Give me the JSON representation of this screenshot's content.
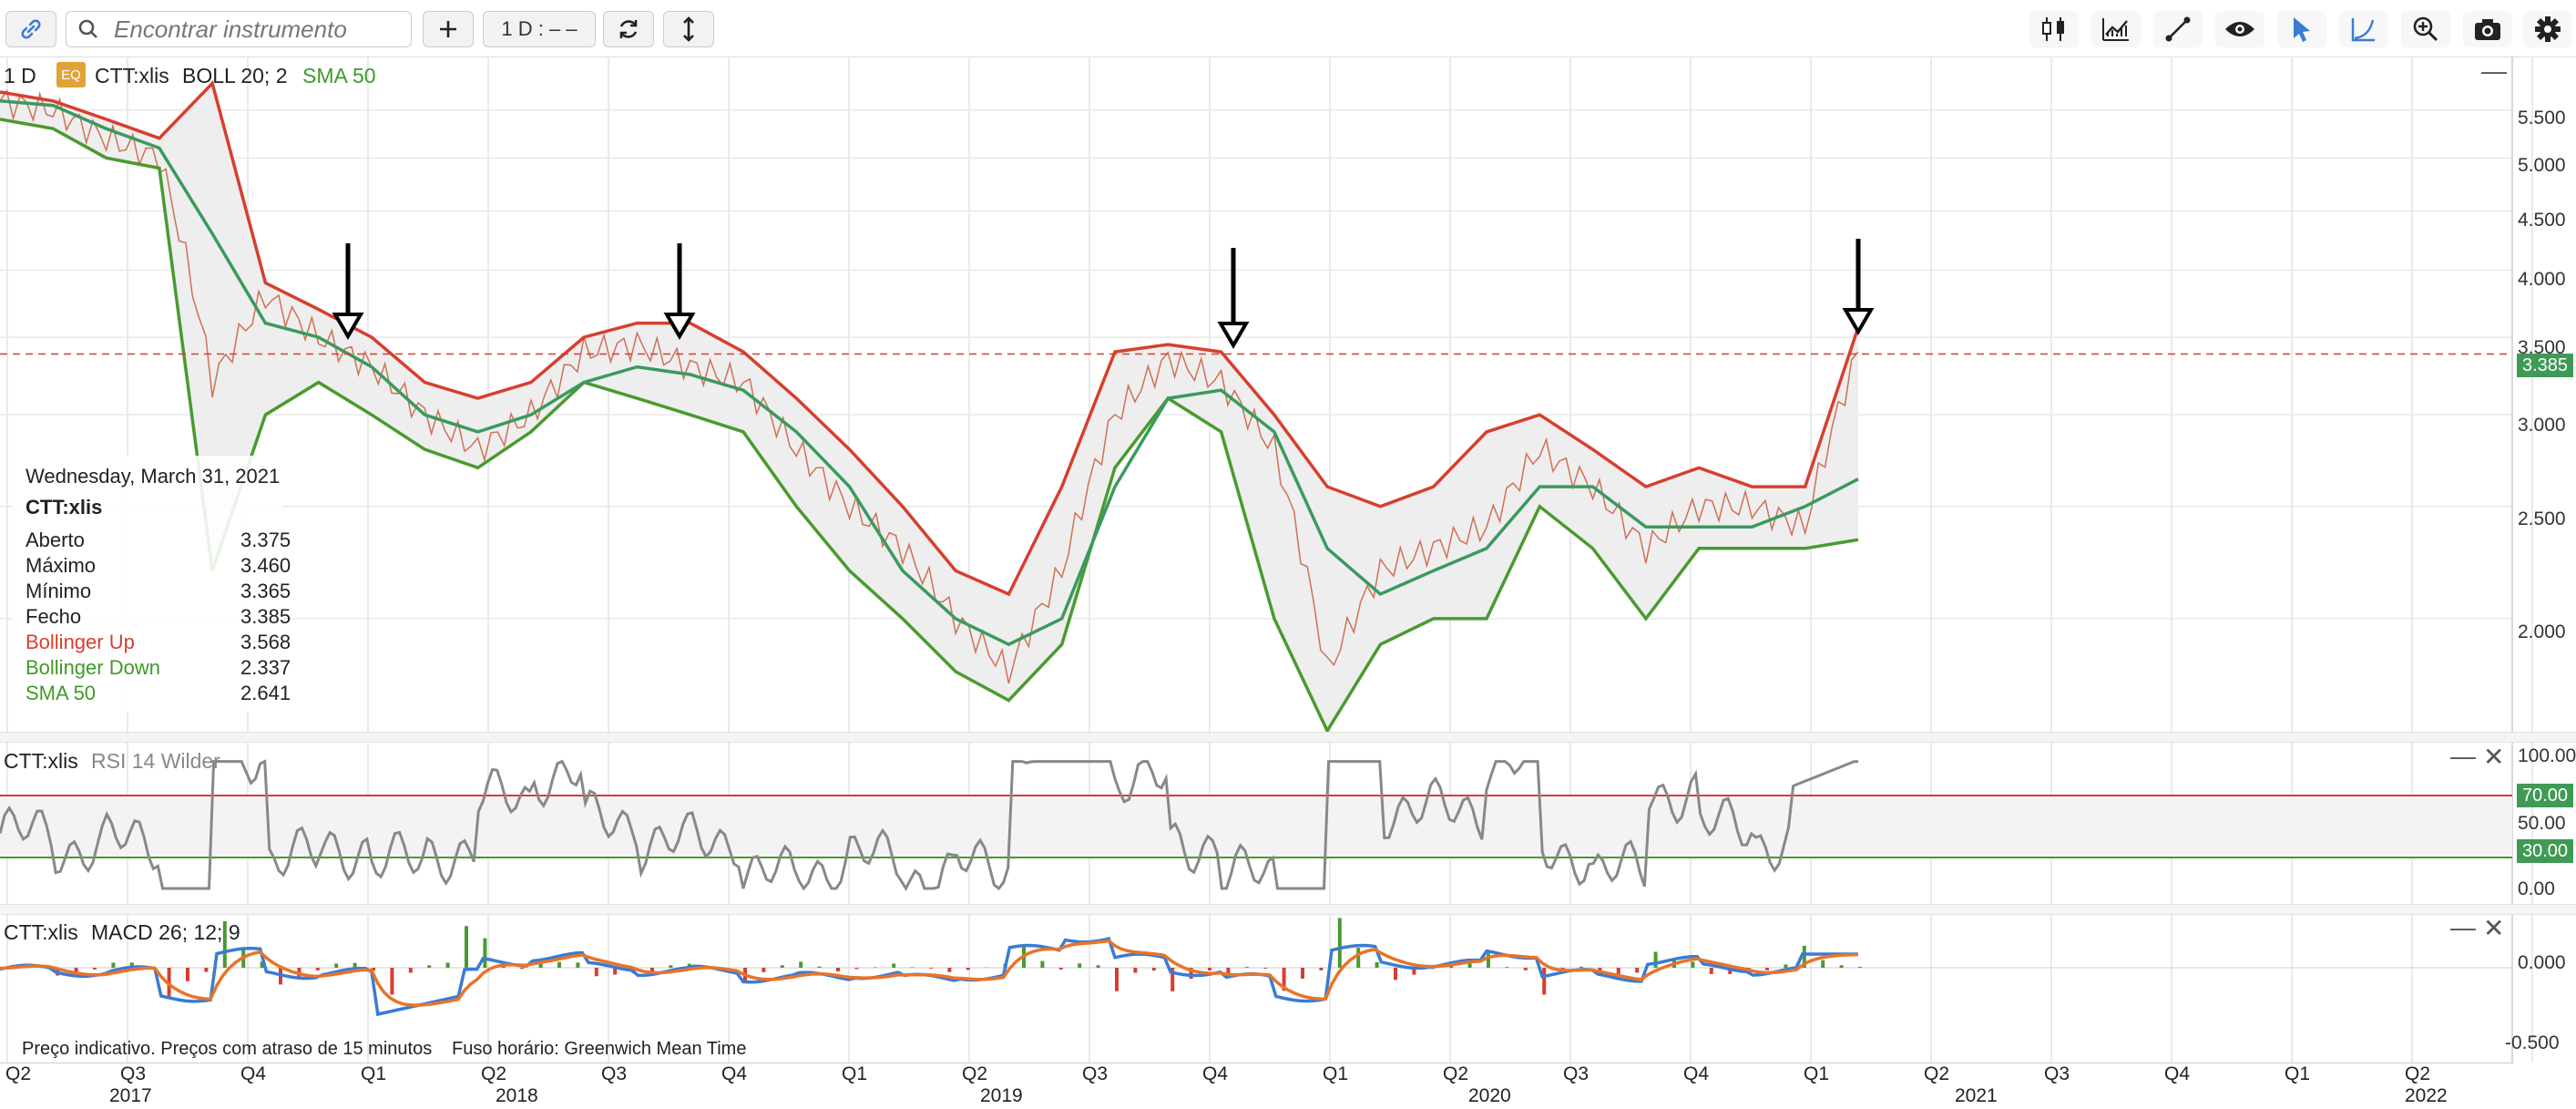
{
  "toolbar": {
    "search_placeholder": "Encontrar instrumento",
    "add_label": "+",
    "interval_label": "1 D : – –",
    "icons": [
      "link-icon",
      "search-icon",
      "plus-icon",
      "refresh-icon",
      "vertical-arrows-icon",
      "candlestick-icon",
      "chart-type-icon",
      "line-draw-icon",
      "eye-icon",
      "cursor-icon",
      "curve-icon",
      "zoom-icon",
      "camera-icon",
      "gear-icon"
    ]
  },
  "main_pane": {
    "interval": "1 D",
    "badge": "EQ",
    "symbol": "CTT:xlis",
    "boll": "BOLL 20; 2",
    "sma": "SMA 50",
    "y_ticks": [
      "5.500",
      "5.000",
      "4.500",
      "4.000",
      "3.500",
      "3.000",
      "2.500",
      "2.000"
    ],
    "last_price": "3.385",
    "colors": {
      "price": "#c85a3c",
      "boll_up": "#d63f2f",
      "boll_down": "#4a9a30",
      "sma": "#3a9a5e",
      "band_fill": "#eeeeee",
      "last_line": "#d63f2f",
      "last_tag": "#3f9a55"
    }
  },
  "tooltip": {
    "date": "Wednesday, March 31, 2021",
    "symbol": "CTT:xlis",
    "rows": [
      {
        "label": "Aberto",
        "value": "3.375",
        "color": "#222"
      },
      {
        "label": "Máximo",
        "value": "3.460",
        "color": "#222"
      },
      {
        "label": "Mínimo",
        "value": "3.365",
        "color": "#222"
      },
      {
        "label": "Fecho",
        "value": "3.385",
        "color": "#222"
      },
      {
        "label": "Bollinger Up",
        "value": "3.568",
        "color": "#d63f2f"
      },
      {
        "label": "Bollinger Down",
        "value": "2.337",
        "color": "#3f9a2a"
      },
      {
        "label": "SMA 50",
        "value": "2.641",
        "color": "#3f9a2a"
      }
    ]
  },
  "rsi_pane": {
    "symbol": "CTT:xlis",
    "label": "RSI 14 Wilder",
    "y_ticks": [
      "100.00",
      "50.00",
      "0.00"
    ],
    "upper_tag": "70.00",
    "lower_tag": "30.00",
    "colors": {
      "line": "#888888",
      "upper": "#d63f2f",
      "lower": "#4a9a30"
    }
  },
  "macd_pane": {
    "symbol": "CTT:xlis",
    "label": "MACD 26; 12; 9",
    "y_ticks": [
      "0.000",
      "-0.500"
    ],
    "colors": {
      "macd": "#3a7bd5",
      "signal": "#e8742a",
      "hist_pos": "#4a9a30",
      "hist_neg": "#d63f2f"
    }
  },
  "footer": {
    "disclaimer": "Preço indicativo. Preços com atraso de 15 minutos",
    "timezone": "Fuso horário: Greenwich Mean Time"
  },
  "x_axis": {
    "quarters": [
      "Q2",
      "Q3",
      "Q4",
      "Q1",
      "Q2",
      "Q3",
      "Q4",
      "Q1",
      "Q2",
      "Q3",
      "Q4",
      "Q1",
      "Q2",
      "Q3",
      "Q4",
      "Q1",
      "Q2",
      "Q3",
      "Q4",
      "Q1",
      "Q2"
    ],
    "years": [
      "2017",
      "2018",
      "2019",
      "2020",
      "2021",
      "2022"
    ]
  },
  "chart_data": {
    "type": "line",
    "title": "",
    "x_range": [
      "2017-Q2",
      "2022-Q2"
    ],
    "ylim": [
      1.6,
      5.9
    ],
    "y_scale": "log",
    "annotations": [
      "down-arrow 2018-Q1",
      "down-arrow 2018-Q4",
      "down-arrow 2019-Q4",
      "down-arrow 2021-Q1"
    ],
    "series": [
      {
        "name": "CTT:xlis",
        "values": [
          5.6,
          5.5,
          5.2,
          5.0,
          3.2,
          3.8,
          3.5,
          3.3,
          3.0,
          2.8,
          3.0,
          3.4,
          3.45,
          3.3,
          3.2,
          2.8,
          2.5,
          2.3,
          2.0,
          1.8,
          2.2,
          3.0,
          3.35,
          3.2,
          2.8,
          1.8,
          2.2,
          2.3,
          2.4,
          2.8,
          2.6,
          2.3,
          2.5,
          2.5,
          2.4,
          3.4
        ]
      },
      {
        "name": "Bollinger Up",
        "values": [
          5.7,
          5.6,
          5.4,
          5.2,
          5.8,
          3.9,
          3.7,
          3.5,
          3.2,
          3.1,
          3.2,
          3.5,
          3.6,
          3.6,
          3.4,
          3.1,
          2.8,
          2.5,
          2.2,
          2.1,
          2.6,
          3.4,
          3.45,
          3.4,
          3.0,
          2.6,
          2.5,
          2.6,
          2.9,
          3.0,
          2.8,
          2.6,
          2.7,
          2.6,
          2.6,
          3.57
        ]
      },
      {
        "name": "Bollinger Down",
        "values": [
          5.4,
          5.3,
          5.0,
          4.9,
          2.2,
          3.0,
          3.2,
          3.0,
          2.8,
          2.7,
          2.9,
          3.2,
          3.1,
          3.0,
          2.9,
          2.5,
          2.2,
          2.0,
          1.8,
          1.7,
          1.9,
          2.7,
          3.1,
          2.9,
          2.0,
          1.6,
          1.9,
          2.0,
          2.0,
          2.5,
          2.3,
          2.0,
          2.3,
          2.3,
          2.3,
          2.34
        ]
      },
      {
        "name": "SMA 50",
        "values": [
          5.6,
          5.55,
          5.3,
          5.1,
          4.3,
          3.6,
          3.5,
          3.3,
          3.0,
          2.9,
          3.0,
          3.2,
          3.3,
          3.25,
          3.15,
          2.9,
          2.6,
          2.2,
          2.0,
          1.9,
          2.0,
          2.6,
          3.1,
          3.15,
          2.9,
          2.3,
          2.1,
          2.2,
          2.3,
          2.6,
          2.6,
          2.4,
          2.4,
          2.4,
          2.5,
          2.64
        ]
      }
    ],
    "last_price": 3.385
  }
}
